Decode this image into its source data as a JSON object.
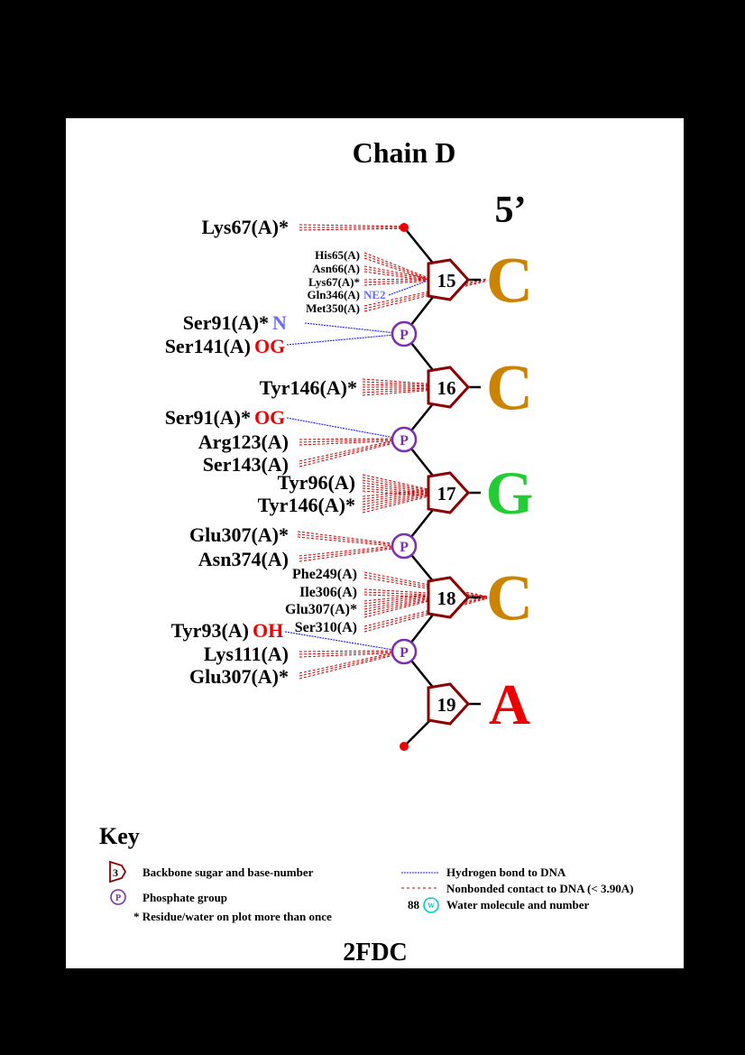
{
  "title": "Chain D",
  "strand_end": "5’",
  "pdb_id": "2FDC",
  "colors": {
    "sugar": "#8b0000",
    "phosphate": "#7a2fb5",
    "hbond": "#1a1aff",
    "nonbonded": "#cc0000",
    "base_C": "#cc8400",
    "base_G": "#22cc33",
    "base_A": "#ee0000",
    "atom_red": "#ee0000",
    "atom_blue": "#6a6aff",
    "water": "#00cccc"
  },
  "nucleotides": [
    {
      "number": "15",
      "base": "C"
    },
    {
      "number": "16",
      "base": "C"
    },
    {
      "number": "17",
      "base": "G"
    },
    {
      "number": "18",
      "base": "C"
    },
    {
      "number": "19",
      "base": "A"
    }
  ],
  "phosphate_label": "P",
  "contacts": [
    {
      "residue": "Lys67(A)*",
      "atom": "",
      "type": "nonbonded",
      "target": "end-5"
    },
    {
      "residue": "His65(A)",
      "atom": "",
      "type": "nonbonded",
      "target": "sugar-15"
    },
    {
      "residue": "Asn66(A)",
      "atom": "",
      "type": "nonbonded",
      "target": "sugar-15"
    },
    {
      "residue": "Lys67(A)*",
      "atom": "",
      "type": "nonbonded",
      "target": "sugar-15"
    },
    {
      "residue": "Gln346(A)",
      "atom": "NE2",
      "type": "hbond",
      "target": "sugar-15"
    },
    {
      "residue": "Met350(A)",
      "atom": "",
      "type": "nonbonded",
      "target": "base-15"
    },
    {
      "residue": "Ser91(A)*",
      "atom": "N",
      "type": "hbond",
      "target": "phosphate-1"
    },
    {
      "residue": "Ser141(A)",
      "atom": "OG",
      "type": "hbond",
      "target": "phosphate-1"
    },
    {
      "residue": "Tyr146(A)*",
      "atom": "",
      "type": "nonbonded",
      "target": "sugar-16"
    },
    {
      "residue": "Ser91(A)*",
      "atom": "OG",
      "type": "hbond",
      "target": "phosphate-2"
    },
    {
      "residue": "Arg123(A)",
      "atom": "",
      "type": "nonbonded",
      "target": "phosphate-2"
    },
    {
      "residue": "Ser143(A)",
      "atom": "",
      "type": "nonbonded",
      "target": "phosphate-2"
    },
    {
      "residue": "Tyr96(A)",
      "atom": "",
      "type": "nonbonded",
      "target": "sugar-17"
    },
    {
      "residue": "Tyr146(A)*",
      "atom": "",
      "type": "nonbonded",
      "target": "sugar-17"
    },
    {
      "residue": "Glu307(A)*",
      "atom": "",
      "type": "nonbonded",
      "target": "phosphate-3"
    },
    {
      "residue": "Asn374(A)",
      "atom": "",
      "type": "nonbonded",
      "target": "phosphate-3"
    },
    {
      "residue": "Phe249(A)",
      "atom": "",
      "type": "nonbonded",
      "target": "base-18"
    },
    {
      "residue": "Ile306(A)",
      "atom": "",
      "type": "nonbonded",
      "target": "base-18"
    },
    {
      "residue": "Glu307(A)*",
      "atom": "",
      "type": "nonbonded",
      "target": "sugar-18"
    },
    {
      "residue": "Ser310(A)",
      "atom": "",
      "type": "nonbonded",
      "target": "base-18"
    },
    {
      "residue": "Tyr93(A)",
      "atom": "OH",
      "type": "hbond",
      "target": "phosphate-4"
    },
    {
      "residue": "Lys111(A)",
      "atom": "",
      "type": "nonbonded",
      "target": "phosphate-4"
    },
    {
      "residue": "Glu307(A)*",
      "atom": "",
      "type": "nonbonded",
      "target": "phosphate-4"
    }
  ],
  "key": {
    "title": "Key",
    "sugar_example": "3",
    "sugar_text": "Backbone sugar and base-number",
    "phosphate_text": "Phosphate group",
    "repeat_text": "* Residue/water on plot more than once",
    "hbond_text": "Hydrogen bond to DNA",
    "nonbonded_text": "Nonbonded contact to DNA (< 3.90A)",
    "water_number": "88",
    "water_symbol": "W",
    "water_text": "Water molecule and number"
  }
}
